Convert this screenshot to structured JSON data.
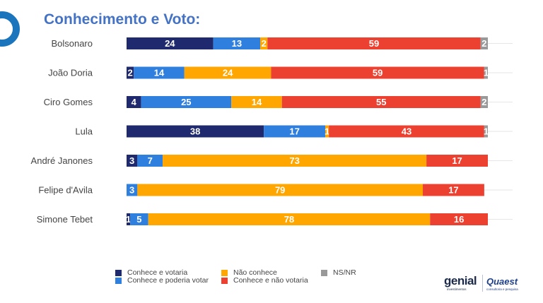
{
  "page": {
    "title": "Conhecimento e Voto:",
    "brand_left": "genial",
    "brand_left_sub": "investimentos",
    "brand_right": "Quaest",
    "brand_right_sub": "consultoria e pesquisa"
  },
  "chart_data": {
    "type": "bar",
    "orientation": "horizontal",
    "stacked": true,
    "title": "Conhecimento e Voto:",
    "categories": [
      "Bolsonaro",
      "João Doria",
      "Ciro Gomes",
      "Lula",
      "André Janones",
      "Felipe d'Avila",
      "Simone Tebet"
    ],
    "series": [
      {
        "name": "Conhece e votaria",
        "color": "#1f2a6e",
        "values": [
          24,
          2,
          4,
          38,
          3,
          0,
          1
        ]
      },
      {
        "name": "Conhece e poderia votar",
        "color": "#2f7fde",
        "values": [
          13,
          14,
          25,
          17,
          7,
          3,
          5
        ]
      },
      {
        "name": "Não conhece",
        "color": "#ffa600",
        "values": [
          2,
          24,
          14,
          1,
          73,
          79,
          78
        ]
      },
      {
        "name": "Conhece e não votaria",
        "color": "#ec4130",
        "values": [
          59,
          59,
          55,
          43,
          17,
          17,
          16
        ]
      },
      {
        "name": "NS/NR",
        "color": "#999999",
        "values": [
          2,
          1,
          2,
          1,
          0,
          0,
          0
        ]
      }
    ],
    "legend_order": [
      "Conhece e votaria",
      "Conhece e poderia votar",
      "Não conhece",
      "Conhece e não votaria",
      "NS/NR"
    ],
    "legend_position": "bottom",
    "xlim": [
      0,
      100
    ],
    "grid": false
  }
}
